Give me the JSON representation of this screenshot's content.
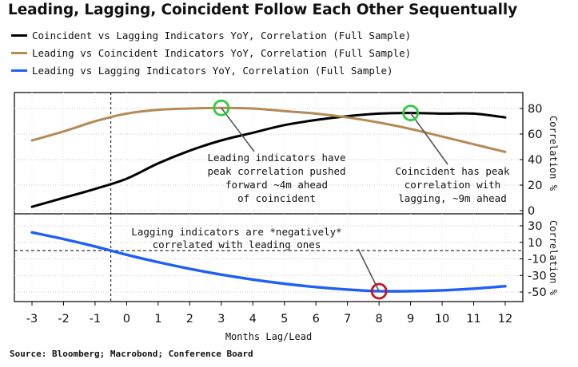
{
  "title": "Leading, Lagging, Coincident Follow Each Other Sequentually",
  "source": "Source: Bloomberg; Macrobond; Conference Board",
  "chart_data": {
    "type": "line",
    "x": [
      -3,
      -2,
      -1,
      0,
      1,
      2,
      3,
      4,
      5,
      6,
      7,
      8,
      9,
      10,
      11,
      12
    ],
    "xlabel": "Months Lag/Lead",
    "x_ticks": [
      "-3",
      "-2",
      "-1",
      "0",
      "1",
      "2",
      "3",
      "4",
      "5",
      "6",
      "7",
      "8",
      "9",
      "10",
      "11",
      "12"
    ],
    "vertical_reference_line_x": -0.5,
    "grid": true,
    "legend_position": "top-left",
    "panels": [
      {
        "name": "upper",
        "ylabel": "Correlation %",
        "ylim": [
          0,
          90
        ],
        "y_ticks": [
          "80",
          "60",
          "40",
          "20",
          "0"
        ],
        "series": [
          {
            "name": "Coincident vs Lagging Indicators YoY, Correlation (Full Sample)",
            "color": "#000000",
            "values": [
              3,
              10,
              17,
              25,
              37,
              47,
              55,
              61,
              67,
              71,
              74,
              76,
              76.5,
              76,
              76,
              73
            ]
          },
          {
            "name": "Leading vs Coincident Indicators YoY, Correlation (Full Sample)",
            "color": "#b58a54",
            "values": [
              55,
              62,
              70,
              76,
              79,
              80,
              80.5,
              80,
              78,
              76,
              73,
              69,
              64,
              58,
              52,
              46
            ]
          }
        ],
        "annotations": [
          {
            "lines": [
              "Leading indicators have",
              "peak correlation pushed",
              "forward ~4m ahead",
              "of coincident"
            ],
            "marker_x": 3,
            "marker_y": 80.5,
            "marker_color": "#2ecc40"
          },
          {
            "lines": [
              "Coincident has peak",
              "correlation with",
              "lagging, ~9m ahead"
            ],
            "marker_x": 9,
            "marker_y": 76.5,
            "marker_color": "#2ecc40"
          }
        ]
      },
      {
        "name": "lower",
        "ylabel": "Correlation %",
        "ylim": [
          -55,
          35
        ],
        "y_ticks": [
          "30",
          "10",
          "-10",
          "-30",
          "-50"
        ],
        "series": [
          {
            "name": "Leading vs Lagging Indicators YoY, Correlation (Full Sample)",
            "color": "#1f5ff5",
            "values": [
              22,
              14,
              5,
              -5,
              -14,
              -22,
              -29,
              -35,
              -40,
              -44,
              -47,
              -49,
              -49,
              -48,
              -46,
              -43
            ]
          }
        ],
        "annotations": [
          {
            "lines": [
              "Lagging indicators are *negatively*",
              "correlated with leading ones"
            ],
            "marker_x": 8,
            "marker_y": -49,
            "marker_color": "#c0141e"
          }
        ]
      }
    ]
  }
}
